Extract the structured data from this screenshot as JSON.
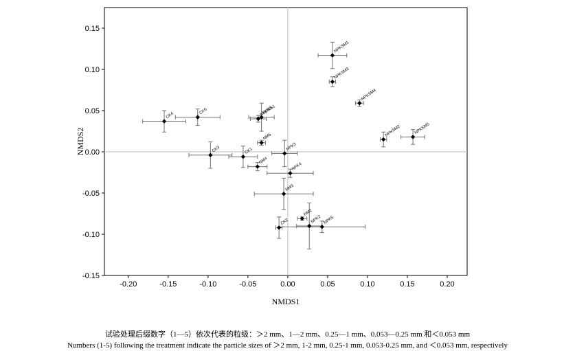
{
  "chart_data": {
    "type": "scatter",
    "xlabel": "NMDS1",
    "ylabel": "NMDS2",
    "xlim": [
      -0.23,
      0.225
    ],
    "ylim": [
      -0.15,
      0.175
    ],
    "xticks": [
      "-0.20",
      "-0.15",
      "-0.10",
      "-0.05",
      "0.00",
      "0.05",
      "0.10",
      "0.15",
      "0.20"
    ],
    "xtick_values": [
      -0.2,
      -0.15,
      -0.1,
      -0.05,
      0.0,
      0.05,
      0.1,
      0.15,
      0.2
    ],
    "yticks": [
      "0.15",
      "0.10",
      "0.05",
      "0.00",
      "-0.05",
      "-0.10",
      "-0.15"
    ],
    "ytick_values": [
      0.15,
      0.1,
      0.05,
      0.0,
      -0.05,
      -0.1,
      -0.15
    ],
    "reference_lines": {
      "x": 0,
      "y": 0,
      "color": "#c8c8c8"
    },
    "grid": false,
    "points": [
      {
        "label": "NPKSM1",
        "x": 0.056,
        "y": 0.117,
        "xerr": 0.018,
        "yerr": 0.016
      },
      {
        "label": "NPKSM3",
        "x": 0.056,
        "y": 0.085,
        "xerr": 0.004,
        "yerr": 0.006
      },
      {
        "label": "NPKSM4",
        "x": 0.09,
        "y": 0.059,
        "xerr": 0.005,
        "yerr": 0.004
      },
      {
        "label": "NPKSM2",
        "x": 0.12,
        "y": 0.015,
        "xerr": 0.004,
        "yerr": 0.009
      },
      {
        "label": "NPKSM5",
        "x": 0.157,
        "y": 0.018,
        "xerr": 0.015,
        "yerr": 0.009
      },
      {
        "label": "CK4",
        "x": -0.155,
        "y": 0.037,
        "xerr": 0.027,
        "yerr": 0.013
      },
      {
        "label": "CK5",
        "x": -0.113,
        "y": 0.042,
        "xerr": 0.028,
        "yerr": 0.01
      },
      {
        "label": "NPKS5",
        "x": -0.037,
        "y": 0.04,
        "xerr": 0.01,
        "yerr": 0.004
      },
      {
        "label": "NPKS1",
        "x": -0.033,
        "y": 0.042,
        "xerr": 0.016,
        "yerr": 0.017
      },
      {
        "label": "CK3",
        "x": -0.097,
        "y": -0.004,
        "xerr": 0.027,
        "yerr": 0.016
      },
      {
        "label": "CK1",
        "x": -0.056,
        "y": -0.006,
        "xerr": 0.018,
        "yerr": 0.013
      },
      {
        "label": "NM5",
        "x": -0.033,
        "y": 0.011,
        "xerr": 0.005,
        "yerr": 0.003
      },
      {
        "label": "NM4",
        "x": -0.038,
        "y": -0.018,
        "xerr": 0.012,
        "yerr": 0.005
      },
      {
        "label": "NPK3",
        "x": -0.004,
        "y": -0.002,
        "xerr": 0.016,
        "yerr": 0.016
      },
      {
        "label": "NPK4",
        "x": 0.003,
        "y": -0.026,
        "xerr": 0.029,
        "yerr": 0.005
      },
      {
        "label": "NM3",
        "x": -0.005,
        "y": -0.051,
        "xerr": 0.037,
        "yerr": 0.019
      },
      {
        "label": "NM2",
        "x": 0.018,
        "y": -0.081,
        "xerr": 0.006,
        "yerr": 0.002
      },
      {
        "label": "CK2",
        "x": -0.011,
        "y": -0.092,
        "xerr": 0.004,
        "yerr": 0.013
      },
      {
        "label": "NPK2",
        "x": 0.027,
        "y": -0.09,
        "xerr": 0.016,
        "yerr": 0.028
      },
      {
        "label": "NPK5",
        "x": 0.043,
        "y": -0.091,
        "xerr": 0.054,
        "yerr": 0.007
      }
    ]
  },
  "captions": {
    "chinese": "试验处理后缀数字（1—5）依次代表的粒级：＞2 mm、1—2 mm、0.25—1 mm、0.053—0.25 mm 和＜0.053 mm",
    "english": "Numbers (1-5) following the treatment indicate the particle sizes of ＞2 mm, 1-2 mm, 0.25-1 mm, 0.053-0.25 mm, and ＜0.053 mm, respectively"
  }
}
